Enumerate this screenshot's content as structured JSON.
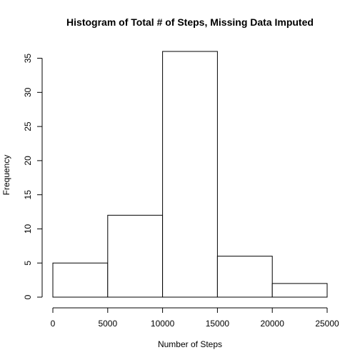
{
  "chart_data": {
    "type": "bar",
    "title": "Histogram of Total # of Steps, Missing Data Imputed",
    "xlabel": "Number of Steps",
    "ylabel": "Frequency",
    "bins": [
      {
        "start": 0,
        "end": 5000,
        "count": 5
      },
      {
        "start": 5000,
        "end": 10000,
        "count": 12
      },
      {
        "start": 10000,
        "end": 15000,
        "count": 36
      },
      {
        "start": 15000,
        "end": 20000,
        "count": 6
      },
      {
        "start": 20000,
        "end": 25000,
        "count": 2
      }
    ],
    "values": [
      5,
      12,
      36,
      6,
      2
    ],
    "xlim": [
      0,
      25000
    ],
    "ylim": [
      0,
      36
    ],
    "x_ticks": [
      0,
      5000,
      10000,
      15000,
      20000,
      25000
    ],
    "y_ticks": [
      0,
      5,
      10,
      15,
      20,
      25,
      30,
      35
    ],
    "grid": false,
    "legend": "none"
  }
}
